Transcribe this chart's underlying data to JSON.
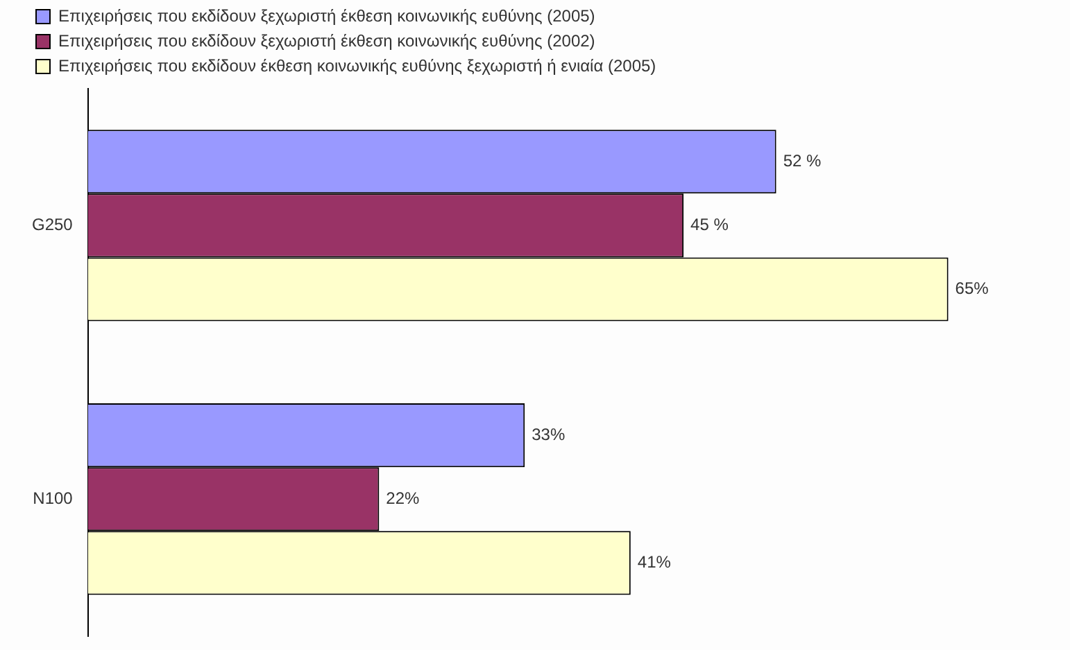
{
  "chart_data": {
    "type": "bar",
    "orientation": "horizontal",
    "categories": [
      "G250",
      "N100"
    ],
    "series": [
      {
        "name": "Επιχειρήσεις που εκδίδουν ξεχωριστή έκθεση κοινωνικής ευθύνης (2005)",
        "color": "#9999ff",
        "values": [
          52,
          33
        ],
        "value_labels": [
          "52 %",
          "33%"
        ]
      },
      {
        "name": "Επιχειρήσεις που εκδίδουν ξεχωριστή έκθεση κοινωνικής ευθύνης (2002)",
        "color": "#993366",
        "values": [
          45,
          22
        ],
        "value_labels": [
          "45 %",
          "22%"
        ]
      },
      {
        "name": "Επιχειρήσεις που εκδίδουν έκθεση κοινωνικής ευθύνης ξεχωριστή ή ενιαία (2005)",
        "color": "#ffffcc",
        "values": [
          65,
          41
        ],
        "value_labels": [
          "65%",
          "41%"
        ]
      }
    ],
    "tick_labels": "y",
    "legend": "top left"
  }
}
